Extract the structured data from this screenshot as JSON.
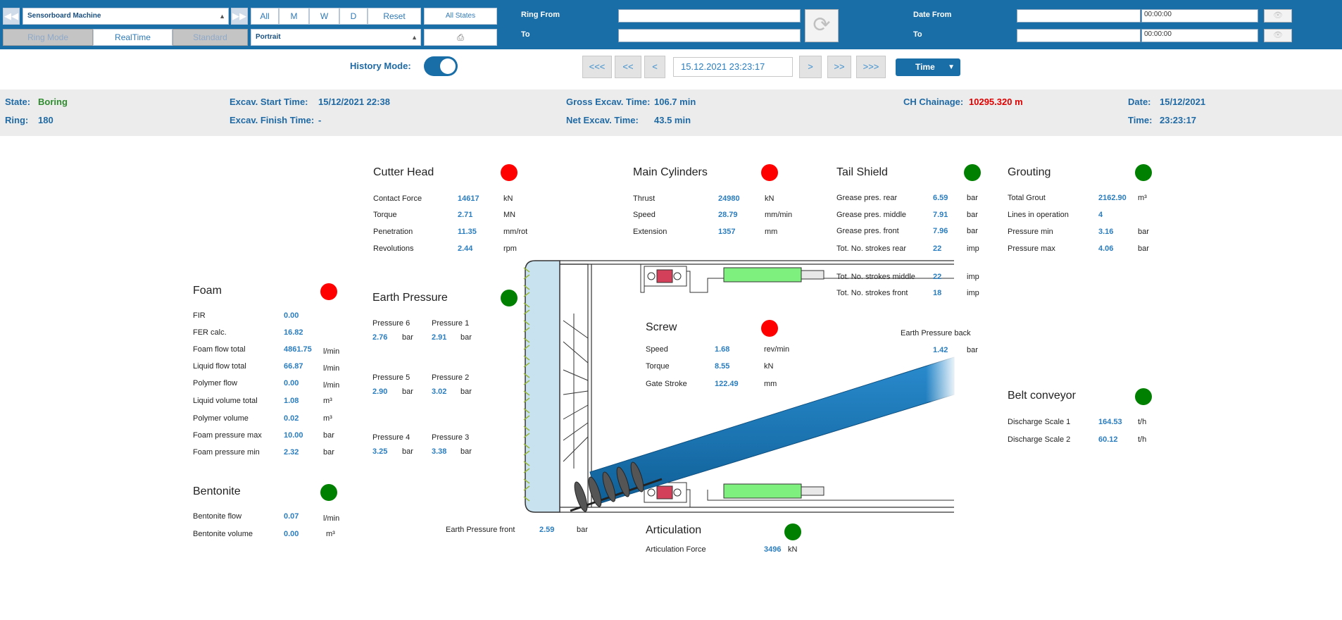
{
  "toolbar": {
    "machine_select": "Sensorboard Machine",
    "period_buttons": [
      "All",
      "M",
      "W",
      "D"
    ],
    "reset": "Reset",
    "all_states": "All States",
    "mode_tabs": [
      "Ring Mode",
      "RealTime",
      "Standard"
    ],
    "layout_select": "Portrait",
    "ring_from_label": "Ring From",
    "ring_to_label": "To",
    "date_from_label": "Date From",
    "date_to_label": "To",
    "date_from_time": "00:00:00",
    "date_to_time": "00:00:00"
  },
  "nav": {
    "history_mode_label": "History Mode:",
    "history_mode_on": true,
    "buttons": [
      "<<<",
      "<<",
      "<",
      ">",
      ">>",
      ">>>"
    ],
    "datetime": "15.12.2021 23:23:17",
    "time_select": "Time"
  },
  "info": {
    "state_label": "State:",
    "state_value": "Boring",
    "ring_label": "Ring:",
    "ring_value": "180",
    "start_label": "Excav. Start Time:",
    "start_value": "15/12/2021 22:38",
    "finish_label": "Excav. Finish Time:",
    "finish_value": "-",
    "gross_label": "Gross Excav. Time:",
    "gross_value": "106.7 min",
    "net_label": "Net Excav. Time:",
    "net_value": "43.5 min",
    "chainage_label": "CH Chainage:",
    "chainage_value": "10295.320 m",
    "date_label": "Date:",
    "date_value": "15/12/2021",
    "time_label": "Time:",
    "time_value": "23:23:17"
  },
  "colors": {
    "accent": "#1a6ea8",
    "value_blue": "#2a7dbf",
    "state_green": "#2e8b2e",
    "chainage_red": "#e00000",
    "status_red": "#ff0000",
    "status_green": "#008000"
  },
  "cutter_head": {
    "title": "Cutter Head",
    "status": "red",
    "rows": [
      {
        "label": "Contact Force",
        "value": "14617",
        "unit": "kN"
      },
      {
        "label": "Torque",
        "value": "2.71",
        "unit": "MN"
      },
      {
        "label": "Penetration",
        "value": "11.35",
        "unit": "mm/rot"
      },
      {
        "label": "Revolutions",
        "value": "2.44",
        "unit": "rpm"
      }
    ]
  },
  "main_cylinders": {
    "title": "Main Cylinders",
    "status": "red",
    "rows": [
      {
        "label": "Thrust",
        "value": "24980",
        "unit": "kN"
      },
      {
        "label": "Speed",
        "value": "28.79",
        "unit": "mm/min"
      },
      {
        "label": "Extension",
        "value": "1357",
        "unit": "mm"
      }
    ]
  },
  "tail_shield": {
    "title": "Tail Shield",
    "status": "green",
    "rows": [
      {
        "label": "Grease pres. rear",
        "value": "6.59",
        "unit": "bar"
      },
      {
        "label": "Grease pres. middle",
        "value": "7.91",
        "unit": "bar"
      },
      {
        "label": "Grease pres. front",
        "value": "7.96",
        "unit": "bar"
      },
      {
        "label": "Tot. No. strokes rear",
        "value": "22",
        "unit": "imp"
      },
      {
        "label": "Tot. No. strokes middle",
        "value": "22",
        "unit": "imp"
      },
      {
        "label": "Tot. No. strokes front",
        "value": "18",
        "unit": "imp"
      }
    ]
  },
  "grouting": {
    "title": "Grouting",
    "status": "green",
    "rows": [
      {
        "label": "Total Grout",
        "value": "2162.90",
        "unit": "m³"
      },
      {
        "label": "Lines in operation",
        "value": "4",
        "unit": ""
      },
      {
        "label": "Pressure min",
        "value": "3.16",
        "unit": "bar"
      },
      {
        "label": "Pressure max",
        "value": "4.06",
        "unit": "bar"
      }
    ]
  },
  "foam": {
    "title": "Foam",
    "status": "red",
    "rows": [
      {
        "label": "FIR",
        "value": "0.00",
        "unit": ""
      },
      {
        "label": "FER calc.",
        "value": "16.82",
        "unit": ""
      },
      {
        "label": "Foam flow total",
        "value": "4861.75",
        "unit": "l/min"
      },
      {
        "label": "Liquid flow total",
        "value": "66.87",
        "unit": "l/min"
      },
      {
        "label": "Polymer flow",
        "value": "0.00",
        "unit": "l/min"
      },
      {
        "label": "Liquid volume total",
        "value": "1.08",
        "unit": "m³"
      },
      {
        "label": "Polymer volume",
        "value": "0.02",
        "unit": "m³"
      },
      {
        "label": "Foam pressure max",
        "value": "10.00",
        "unit": "bar"
      },
      {
        "label": "Foam pressure min",
        "value": "2.32",
        "unit": "bar"
      }
    ]
  },
  "bentonite": {
    "title": "Bentonite",
    "status": "green",
    "rows": [
      {
        "label": "Bentonite flow",
        "value": "0.07",
        "unit": "l/min"
      },
      {
        "label": "Bentonite volume",
        "value": "0.00",
        "unit": "m³"
      }
    ]
  },
  "earth_pressure": {
    "title": "Earth Pressure",
    "status": "green",
    "sensors": [
      {
        "label": "Pressure 6",
        "value": "2.76",
        "unit": "bar"
      },
      {
        "label": "Pressure 1",
        "value": "2.91",
        "unit": "bar"
      },
      {
        "label": "Pressure 5",
        "value": "2.90",
        "unit": "bar"
      },
      {
        "label": "Pressure 2",
        "value": "3.02",
        "unit": "bar"
      },
      {
        "label": "Pressure 4",
        "value": "3.25",
        "unit": "bar"
      },
      {
        "label": "Pressure 3",
        "value": "3.38",
        "unit": "bar"
      }
    ],
    "front_label": "Earth Pressure front",
    "front_value": "2.59",
    "front_unit": "bar",
    "back_label": "Earth Pressure back",
    "back_value": "1.42",
    "back_unit": "bar"
  },
  "screw": {
    "title": "Screw",
    "status": "red",
    "rows": [
      {
        "label": "Speed",
        "value": "1.68",
        "unit": "rev/min"
      },
      {
        "label": "Torque",
        "value": "8.55",
        "unit": "kN"
      },
      {
        "label": "Gate Stroke",
        "value": "122.49",
        "unit": "mm"
      }
    ]
  },
  "belt_conveyor": {
    "title": "Belt conveyor",
    "status": "green",
    "rows": [
      {
        "label": "Discharge Scale 1",
        "value": "164.53",
        "unit": "t/h"
      },
      {
        "label": "Discharge Scale 2",
        "value": "60.12",
        "unit": "t/h"
      }
    ]
  },
  "articulation": {
    "title": "Articulation",
    "status": "green",
    "label": "Articulation Force",
    "value": "3496",
    "unit": "kN"
  }
}
